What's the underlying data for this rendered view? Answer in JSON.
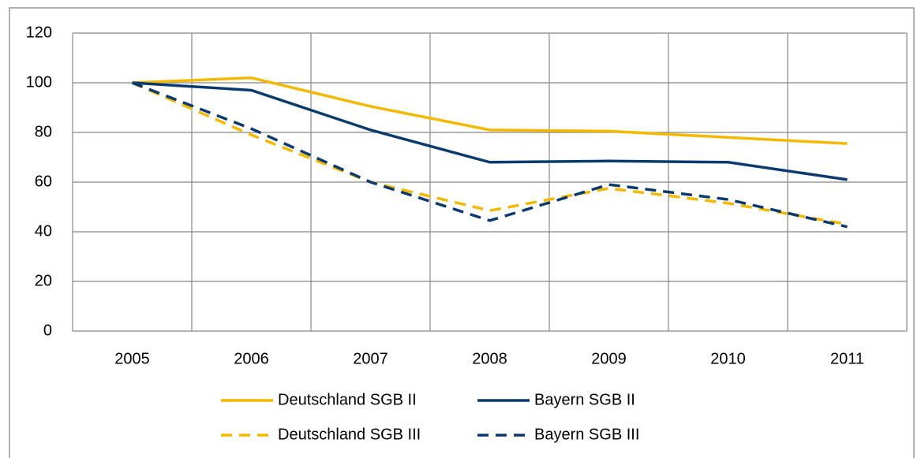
{
  "chart_data": {
    "type": "line",
    "categories": [
      "2005",
      "2006",
      "2007",
      "2008",
      "2009",
      "2010",
      "2011"
    ],
    "series": [
      {
        "name": "Deutschland SGB II",
        "color": "#f5b800",
        "dashed": false,
        "values": [
          100,
          102,
          90.5,
          81,
          80.5,
          78,
          75.5
        ]
      },
      {
        "name": "Bayern SGB II",
        "color": "#0b3a6e",
        "dashed": false,
        "values": [
          100,
          97,
          81,
          68,
          68.5,
          68,
          61
        ]
      },
      {
        "name": "Deutschland SGB III",
        "color": "#f5b800",
        "dashed": true,
        "values": [
          100,
          79,
          60,
          48.5,
          57.5,
          51.5,
          43
        ]
      },
      {
        "name": "Bayern SGB III",
        "color": "#0b3a6e",
        "dashed": true,
        "values": [
          100,
          81.5,
          60,
          44.5,
          59,
          53,
          42
        ]
      }
    ],
    "ylim": [
      0,
      120
    ],
    "yticks": [
      0,
      20,
      40,
      60,
      80,
      100,
      120
    ],
    "grid": true
  }
}
